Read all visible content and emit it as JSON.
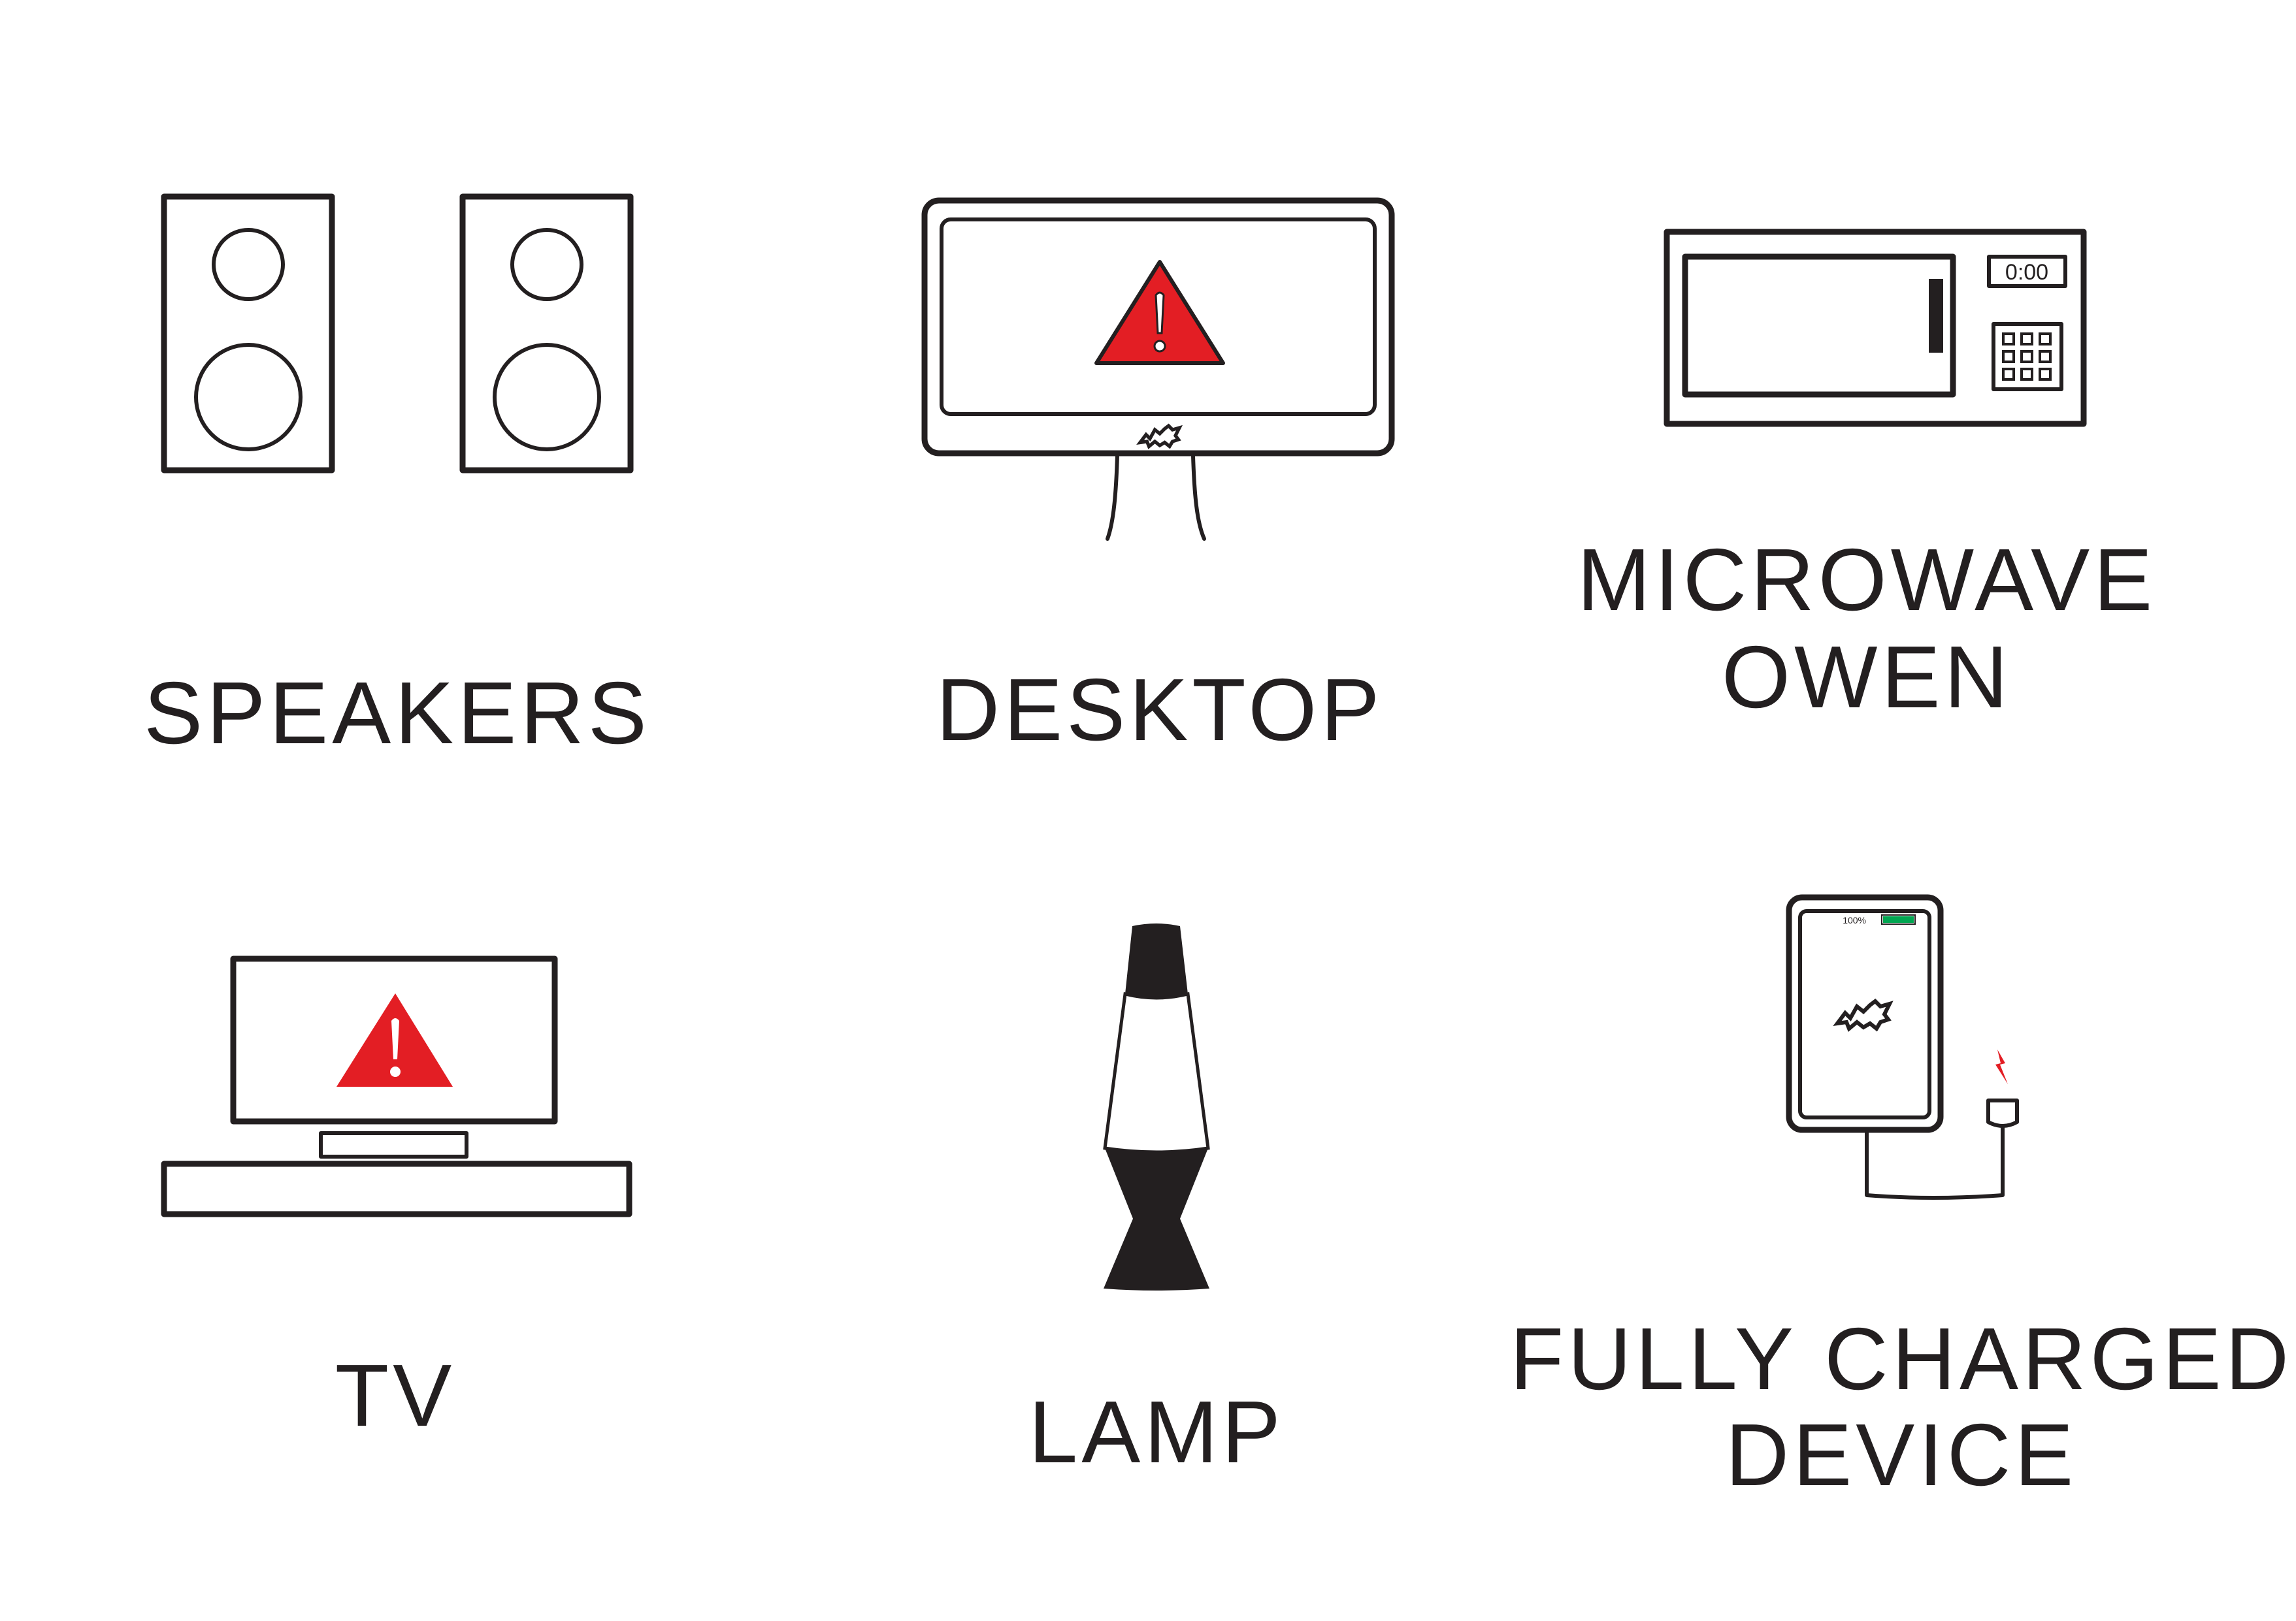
{
  "colors": {
    "ink": "#231f20",
    "alert_red": "#e31e24",
    "battery_green": "#00a651",
    "background": "#ffffff"
  },
  "labels": {
    "speakers": "SPEAKERS",
    "desktop": "DESKTOP",
    "microwave_line1": "MICROWAVE",
    "microwave_line2": "OWEN",
    "tv": "TV",
    "lamp": "LAMP",
    "device_line1": "FULLY CHARGED",
    "device_line2": "DEVICE"
  },
  "microwave": {
    "clock": "0:00"
  },
  "phone": {
    "battery": "100%"
  },
  "icons": {
    "speakers": "speakers-icon",
    "desktop": "desktop-monitor-icon",
    "microwave": "microwave-oven-icon",
    "tv": "tv-icon",
    "lamp": "lava-lamp-icon",
    "device": "charging-phone-icon",
    "alert": "warning-triangle-icon",
    "logo": "bat-logo-icon",
    "bolt": "lightning-bolt-icon"
  }
}
